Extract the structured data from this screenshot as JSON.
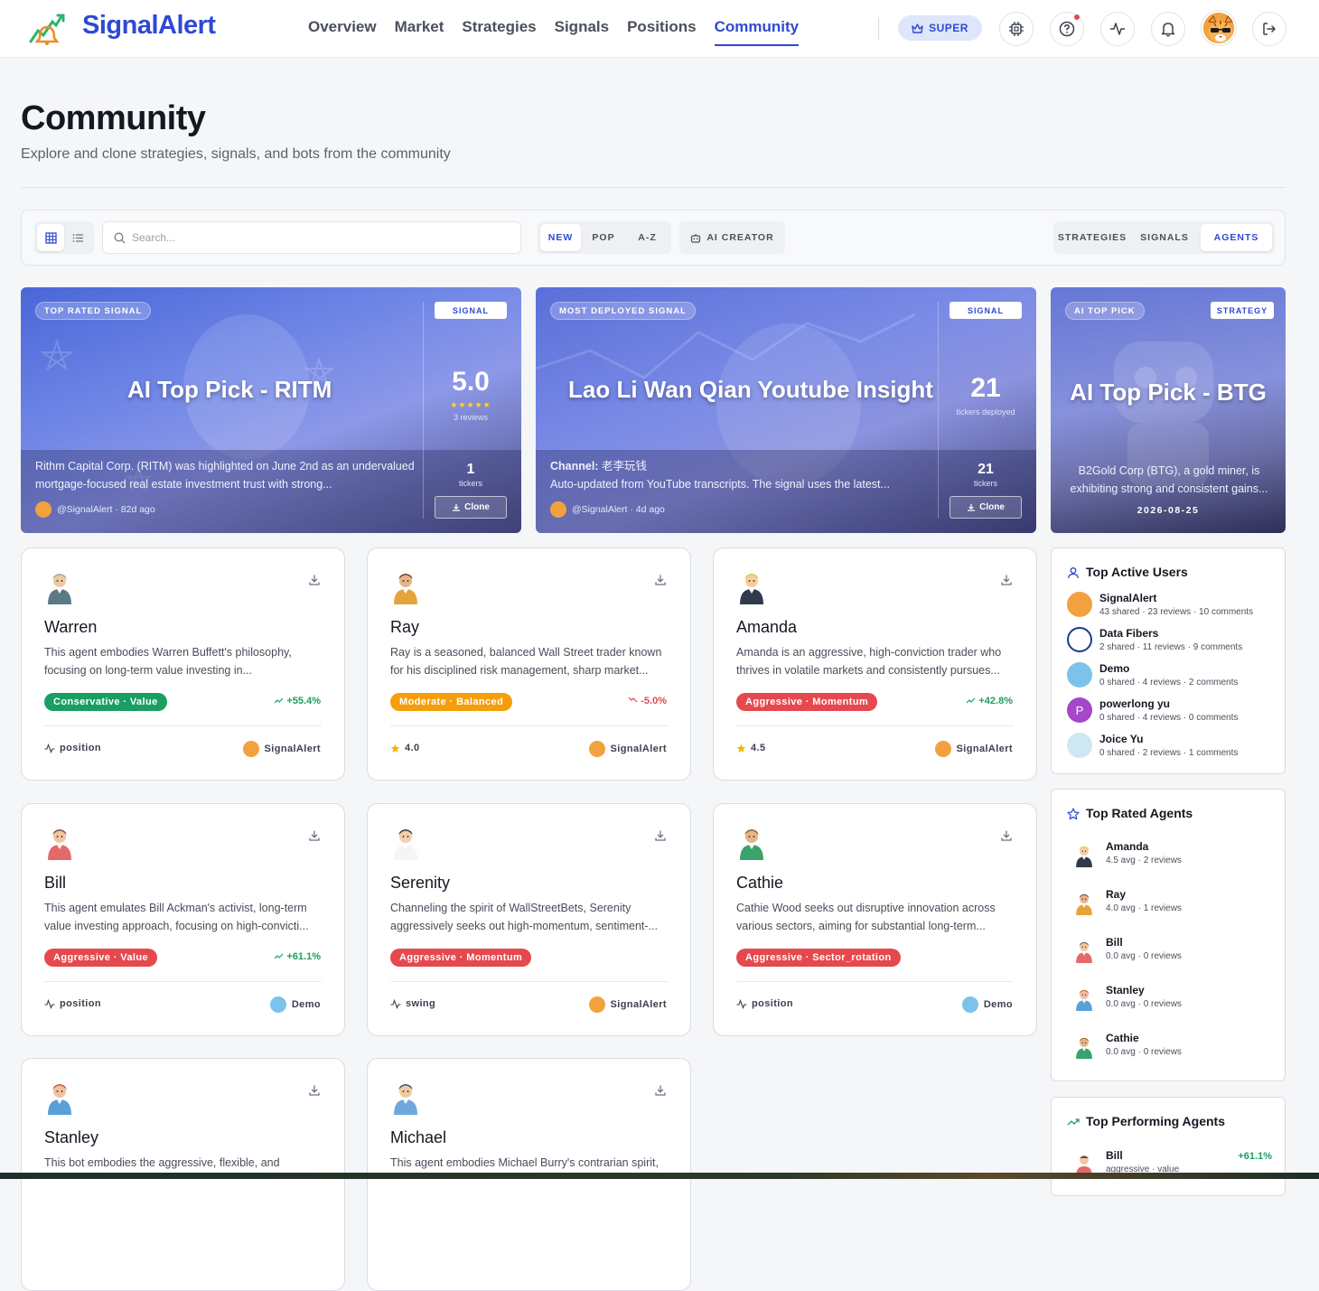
{
  "header": {
    "brand": "SignalAlert",
    "nav": [
      "Overview",
      "Market",
      "Strategies",
      "Signals",
      "Positions",
      "Community"
    ],
    "active_nav": "Community",
    "super_label": "SUPER"
  },
  "page": {
    "title": "Community",
    "subtitle": "Explore and clone strategies, signals, and bots from the community"
  },
  "toolbar": {
    "search_placeholder": "Search...",
    "sort": [
      "NEW",
      "POP",
      "A-Z"
    ],
    "active_sort": "NEW",
    "ai_creator": "AI CREATOR",
    "types": [
      "STRATEGIES",
      "SIGNALS",
      "AGENTS"
    ],
    "active_type": "AGENTS"
  },
  "featured": [
    {
      "badge": "TOP RATED SIGNAL",
      "kind": "SIGNAL",
      "title": "AI Top Pick - RITM",
      "description": "Rithm Capital Corp. (RITM) was highlighted on June 2nd as an undervalued mortgage-focused real estate investment trust with strong...",
      "author": "@SignalAlert · 82d ago",
      "stat": "5.0",
      "stars": "★★★★★",
      "stat_label": "3 reviews",
      "tickers": "1",
      "tickers_label": "tickers",
      "clone": "Clone"
    },
    {
      "badge": "MOST DEPLOYED SIGNAL",
      "kind": "SIGNAL",
      "title": "Lao Li Wan Qian Youtube Insight",
      "channel_label": "Channel:",
      "channel": "老李玩钱",
      "description": "Auto-updated from YouTube transcripts. The signal uses the latest...",
      "author": "@SignalAlert · 4d ago",
      "stat": "21",
      "stat_label": "tickers deployed",
      "tickers": "21",
      "tickers_label": "tickers",
      "clone": "Clone"
    },
    {
      "badge": "AI TOP PICK",
      "kind": "STRATEGY",
      "title": "AI Top Pick - BTG",
      "description": "B2Gold Corp (BTG), a gold miner, is exhibiting strong and consistent gains...",
      "date": "2026-08-25"
    }
  ],
  "agents": [
    {
      "name": "Warren",
      "desc": "This agent embodies Warren Buffett's philosophy, focusing on long-term value investing in...",
      "tag": "Conservative · Value",
      "tag_color": "#1a9e63",
      "perf": "+55.4%",
      "perf_dir": "up",
      "foot": "position",
      "foot_type": "pulse",
      "owner": "SignalAlert",
      "avatar": "warren"
    },
    {
      "name": "Ray",
      "desc": "Ray is a seasoned, balanced Wall Street trader known for his disciplined risk management, sharp market...",
      "tag": "Moderate · Balanced",
      "tag_color": "#f59e0b",
      "perf": "-5.0%",
      "perf_dir": "down",
      "foot": "4.0",
      "foot_type": "star",
      "owner": "SignalAlert",
      "avatar": "ray"
    },
    {
      "name": "Amanda",
      "desc": "Amanda is an aggressive, high-conviction trader who thrives in volatile markets and consistently pursues...",
      "tag": "Aggressive · Momentum",
      "tag_color": "#e5484d",
      "perf": "+42.8%",
      "perf_dir": "up",
      "foot": "4.5",
      "foot_type": "star",
      "owner": "SignalAlert",
      "avatar": "amanda"
    },
    {
      "name": "Bill",
      "desc": "This agent emulates Bill Ackman's activist, long-term value investing approach, focusing on high-convicti...",
      "tag": "Aggressive · Value",
      "tag_color": "#e5484d",
      "perf": "+61.1%",
      "perf_dir": "up",
      "foot": "position",
      "foot_type": "pulse",
      "owner": "Demo",
      "avatar": "bill"
    },
    {
      "name": "Serenity",
      "desc": "Channeling the spirit of WallStreetBets, Serenity aggressively seeks out high-momentum, sentiment-...",
      "tag": "Aggressive · Momentum",
      "tag_color": "#e5484d",
      "perf": "",
      "perf_dir": "",
      "foot": "swing",
      "foot_type": "pulse",
      "owner": "SignalAlert",
      "avatar": "serenity"
    },
    {
      "name": "Cathie",
      "desc": "Cathie Wood seeks out disruptive innovation across various sectors, aiming for substantial long-term...",
      "tag": "Aggressive · Sector_rotation",
      "tag_color": "#e5484d",
      "perf": "",
      "perf_dir": "",
      "foot": "position",
      "foot_type": "pulse",
      "owner": "Demo",
      "avatar": "cathie"
    },
    {
      "name": "Stanley",
      "desc": "This bot embodies the aggressive, flexible, and",
      "avatar": "stanley"
    },
    {
      "name": "Michael",
      "desc": "This agent embodies Michael Burry's contrarian spirit,",
      "avatar": "michael"
    }
  ],
  "sidebar": {
    "active_users_title": "Top Active Users",
    "active_users": [
      {
        "name": "SignalAlert",
        "stats": "43 shared · 23 reviews · 10 comments"
      },
      {
        "name": "Data Fibers",
        "stats": "2 shared · 11 reviews · 9 comments"
      },
      {
        "name": "Demo",
        "stats": "0 shared · 4 reviews · 2 comments"
      },
      {
        "name": "powerlong yu",
        "stats": "0 shared · 4 reviews · 0 comments",
        "initial": "P"
      },
      {
        "name": "Joice Yu",
        "stats": "0 shared · 2 reviews · 1 comments"
      }
    ],
    "rated_title": "Top Rated Agents",
    "rated": [
      {
        "name": "Amanda",
        "stats": "4.5 avg · 2 reviews"
      },
      {
        "name": "Ray",
        "stats": "4.0 avg · 1 reviews"
      },
      {
        "name": "Bill",
        "stats": "0.0 avg · 0 reviews"
      },
      {
        "name": "Stanley",
        "stats": "0.0 avg · 0 reviews"
      },
      {
        "name": "Cathie",
        "stats": "0.0 avg · 0 reviews"
      }
    ],
    "performing_title": "Top Performing Agents",
    "performing": [
      {
        "name": "Bill",
        "stats": "aggressive · value",
        "perf": "+61.1%"
      }
    ]
  },
  "colors": {
    "accent": "#2f49d1",
    "green": "#1f9d62",
    "red": "#e5484d"
  }
}
